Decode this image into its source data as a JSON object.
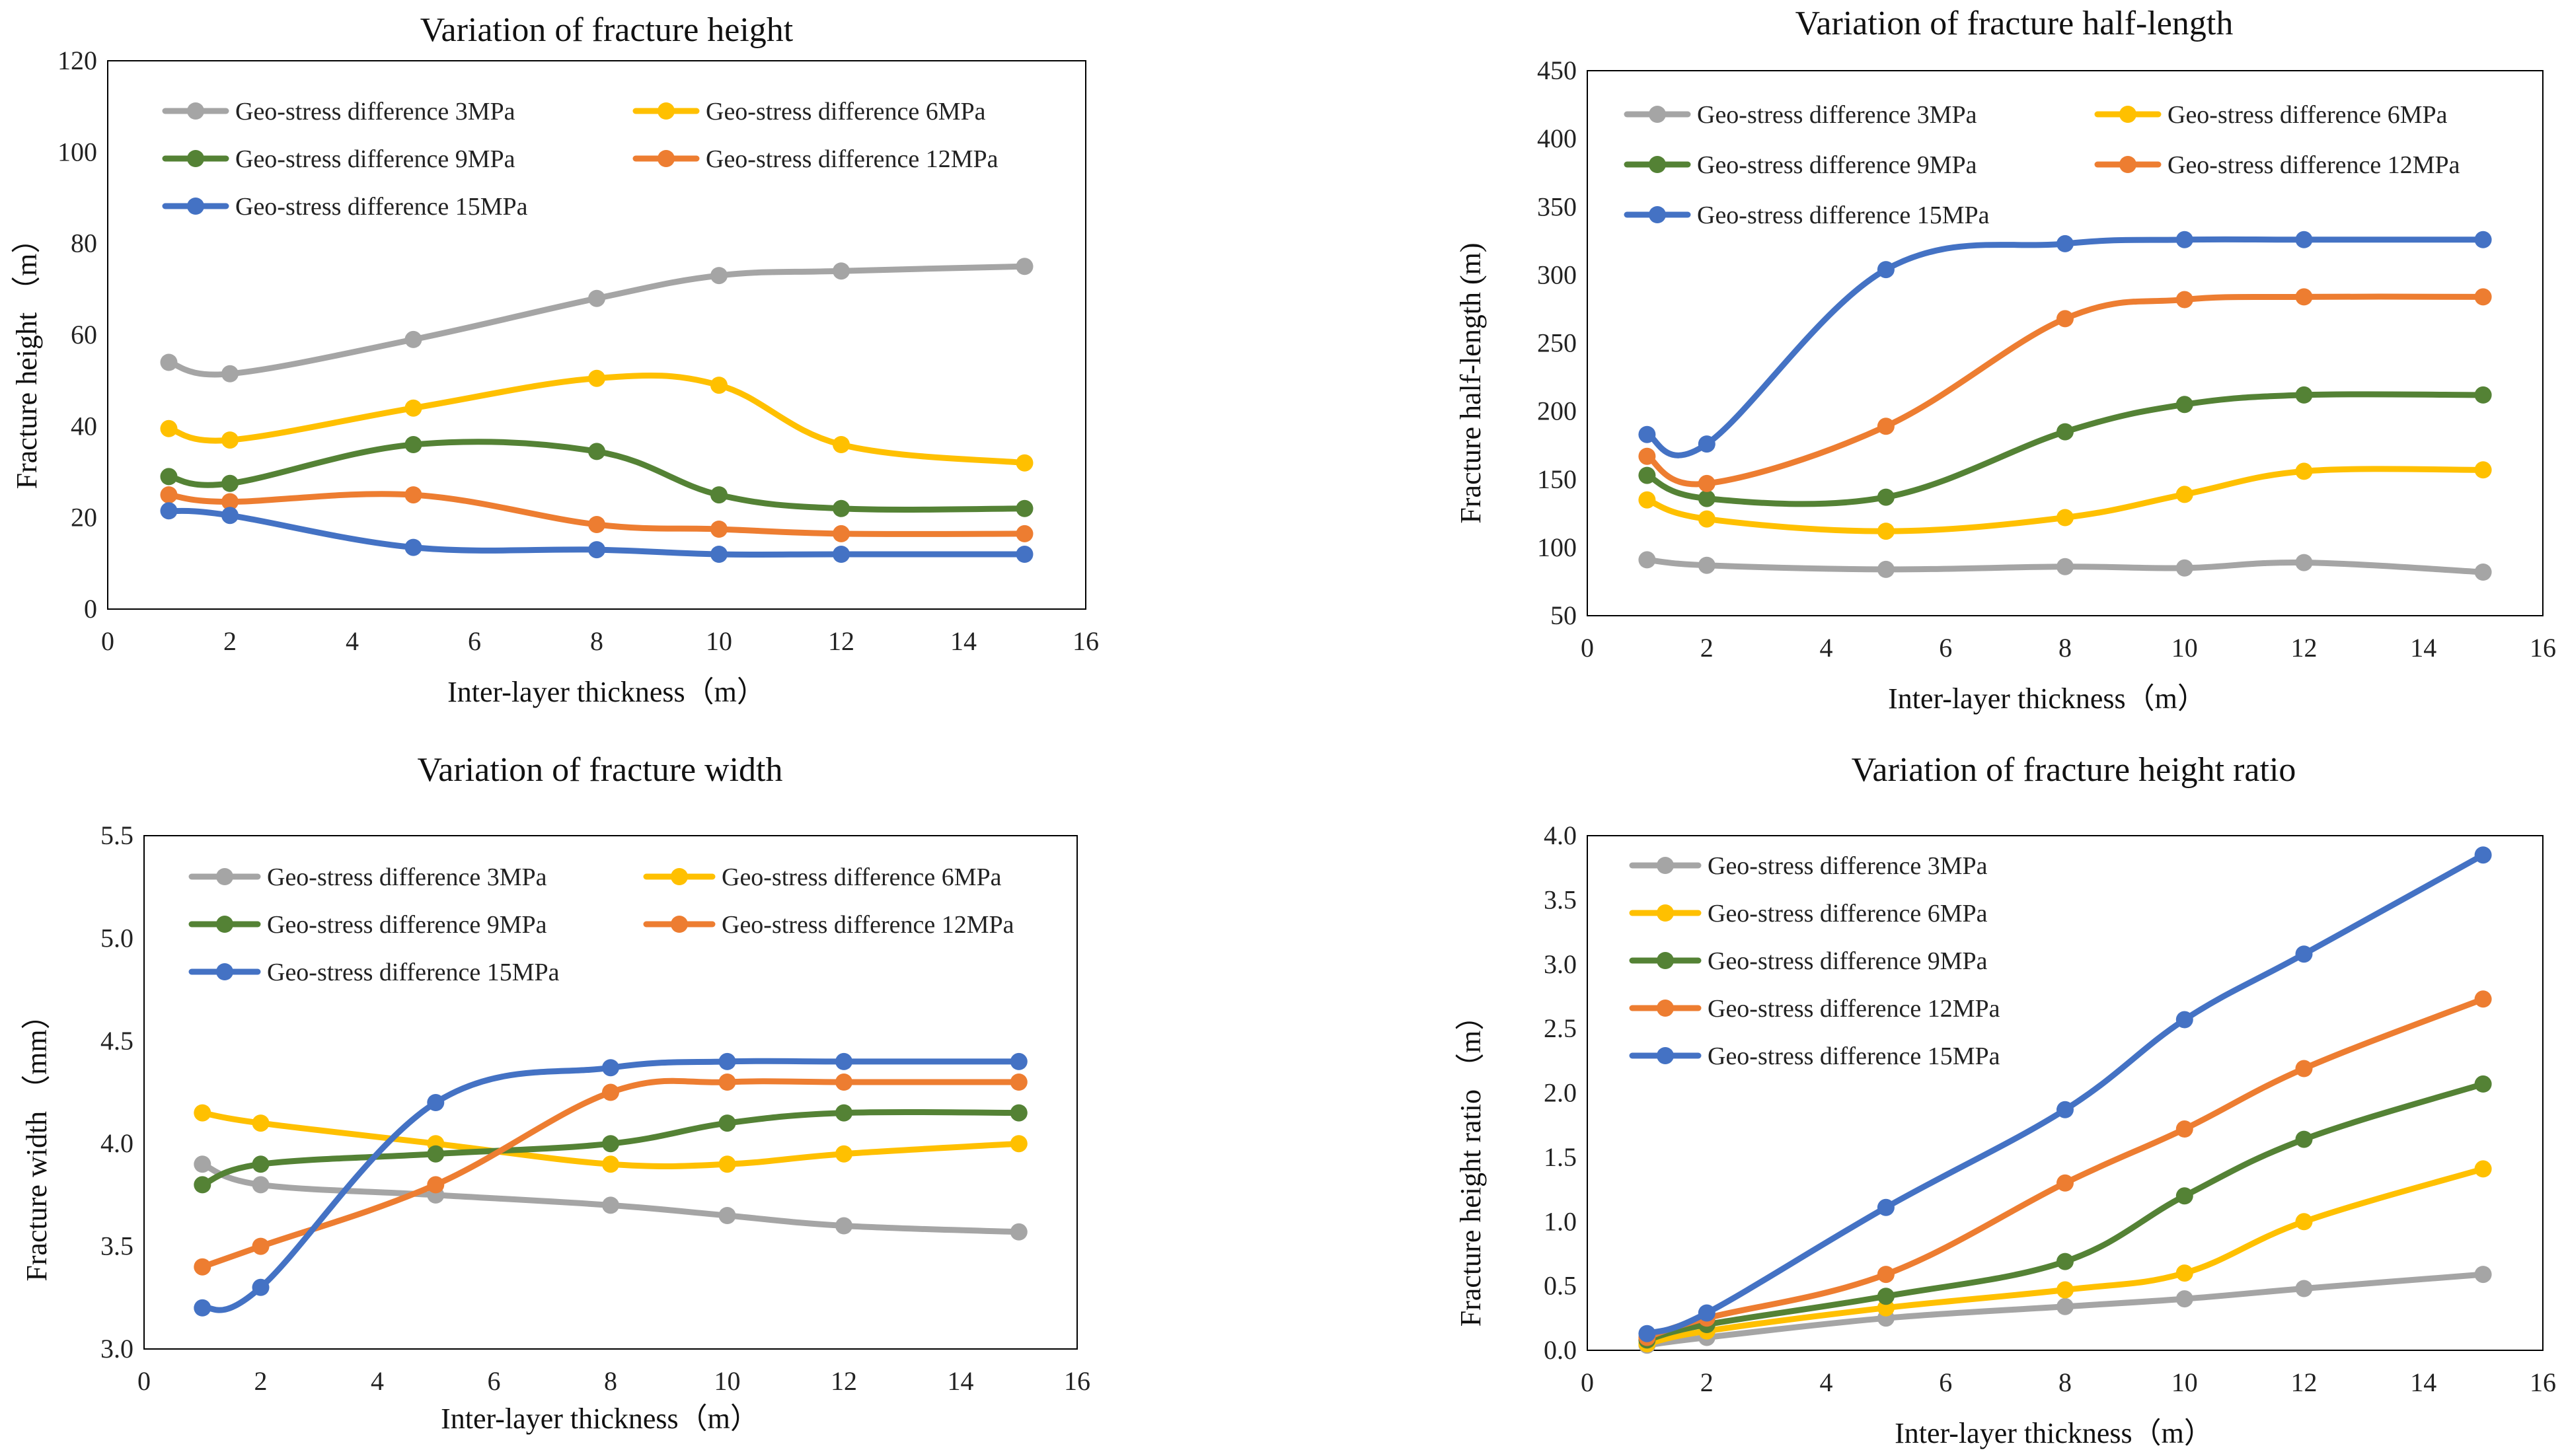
{
  "chart_data": [
    {
      "type": "line",
      "title": "Variation of fracture height",
      "xlabel": "Inter-layer thickness（m）",
      "ylabel": "Fracture height （m）",
      "x": [
        1,
        2,
        5,
        8,
        10,
        12,
        15
      ],
      "xlim": [
        0,
        16
      ],
      "xticks": [
        0,
        2,
        4,
        6,
        8,
        10,
        12,
        14,
        16
      ],
      "ylim": [
        0,
        120
      ],
      "yticks": [
        0,
        20,
        40,
        60,
        80,
        100,
        120
      ],
      "legend": "top-left, two columns",
      "series": [
        {
          "name": "Geo-stress difference 3MPa",
          "color": "#a5a5a5",
          "values": [
            54,
            51.5,
            59,
            68,
            73,
            74,
            75
          ]
        },
        {
          "name": "Geo-stress difference 6MPa",
          "color": "#ffc000",
          "values": [
            39.5,
            37,
            44,
            50.5,
            49,
            36,
            32
          ]
        },
        {
          "name": "Geo-stress difference 9MPa",
          "color": "#548235",
          "values": [
            29,
            27.5,
            36,
            34.5,
            25,
            22,
            22
          ]
        },
        {
          "name": "Geo-stress difference 12MPa",
          "color": "#ed7d31",
          "values": [
            25,
            23.5,
            25,
            18.5,
            17.5,
            16.5,
            16.5
          ]
        },
        {
          "name": "Geo-stress difference 15MPa",
          "color": "#4472c4",
          "values": [
            21.5,
            20.5,
            13.5,
            13,
            12,
            12,
            12
          ]
        }
      ]
    },
    {
      "type": "line",
      "title": "Variation of fracture half-length",
      "xlabel": "Inter-layer thickness（m）",
      "ylabel": "Fracture half-length (m)",
      "x": [
        1,
        2,
        5,
        8,
        10,
        12,
        15
      ],
      "xlim": [
        0,
        16
      ],
      "xticks": [
        0,
        2,
        4,
        6,
        8,
        10,
        12,
        14,
        16
      ],
      "ylim": [
        50,
        450
      ],
      "yticks": [
        50,
        100,
        150,
        200,
        250,
        300,
        350,
        400,
        450
      ],
      "legend": "top-left, two columns",
      "series": [
        {
          "name": "Geo-stress difference 3MPa",
          "color": "#a5a5a5",
          "values": [
            91,
            87,
            84,
            86,
            85,
            89,
            82
          ]
        },
        {
          "name": "Geo-stress difference 6MPa",
          "color": "#ffc000",
          "values": [
            135,
            121,
            112,
            122,
            139,
            156,
            157
          ]
        },
        {
          "name": "Geo-stress difference 9MPa",
          "color": "#548235",
          "values": [
            153,
            136,
            137,
            185,
            205,
            212,
            212
          ]
        },
        {
          "name": "Geo-stress difference 12MPa",
          "color": "#ed7d31",
          "values": [
            167,
            147,
            189,
            268,
            282,
            284,
            284
          ]
        },
        {
          "name": "Geo-stress difference 15MPa",
          "color": "#4472c4",
          "values": [
            183,
            176,
            304,
            323,
            326,
            326,
            326
          ]
        }
      ]
    },
    {
      "type": "line",
      "title": "Variation of fracture width",
      "xlabel": "Inter-layer thickness（m）",
      "ylabel": "Fracture width （mm）",
      "x": [
        1,
        2,
        5,
        8,
        10,
        12,
        15
      ],
      "xlim": [
        0,
        16
      ],
      "xticks": [
        0,
        2,
        4,
        6,
        8,
        10,
        12,
        14,
        16
      ],
      "ylim": [
        3.0,
        5.5
      ],
      "yticks": [
        3.0,
        3.5,
        4.0,
        4.5,
        5.0,
        5.5
      ],
      "legend": "top-left, two columns",
      "series": [
        {
          "name": "Geo-stress difference 3MPa",
          "color": "#a5a5a5",
          "values": [
            3.9,
            3.8,
            3.75,
            3.7,
            3.65,
            3.6,
            3.57
          ]
        },
        {
          "name": "Geo-stress difference 6MPa",
          "color": "#ffc000",
          "values": [
            4.15,
            4.1,
            4.0,
            3.9,
            3.9,
            3.95,
            4.0
          ]
        },
        {
          "name": "Geo-stress difference 9MPa",
          "color": "#548235",
          "values": [
            3.8,
            3.9,
            3.95,
            4.0,
            4.1,
            4.15,
            4.15
          ]
        },
        {
          "name": "Geo-stress difference 12MPa",
          "color": "#ed7d31",
          "values": [
            3.4,
            3.5,
            3.8,
            4.25,
            4.3,
            4.3,
            4.3
          ]
        },
        {
          "name": "Geo-stress difference 15MPa",
          "color": "#4472c4",
          "values": [
            3.2,
            3.3,
            4.2,
            4.37,
            4.4,
            4.4,
            4.4
          ]
        }
      ]
    },
    {
      "type": "line",
      "title": "Variation of fracture height ratio",
      "xlabel": "Inter-layer thickness（m）",
      "ylabel": "Fracture height ratio （m）",
      "x": [
        1,
        2,
        5,
        8,
        10,
        12,
        15
      ],
      "xlim": [
        0,
        16
      ],
      "xticks": [
        0,
        2,
        4,
        6,
        8,
        10,
        12,
        14,
        16
      ],
      "ylim": [
        0.0,
        4.0
      ],
      "yticks": [
        0.0,
        0.5,
        1.0,
        1.5,
        2.0,
        2.5,
        3.0,
        3.5,
        4.0
      ],
      "legend": "top-left, single column",
      "series": [
        {
          "name": "Geo-stress difference 3MPa",
          "color": "#a5a5a5",
          "values": [
            0.04,
            0.1,
            0.25,
            0.34,
            0.4,
            0.48,
            0.59
          ]
        },
        {
          "name": "Geo-stress difference 6MPa",
          "color": "#ffc000",
          "values": [
            0.05,
            0.15,
            0.33,
            0.47,
            0.6,
            1.0,
            1.41
          ]
        },
        {
          "name": "Geo-stress difference 9MPa",
          "color": "#548235",
          "values": [
            0.08,
            0.2,
            0.42,
            0.69,
            1.2,
            1.64,
            2.07
          ]
        },
        {
          "name": "Geo-stress difference 12MPa",
          "color": "#ed7d31",
          "values": [
            0.1,
            0.25,
            0.59,
            1.3,
            1.72,
            2.19,
            2.73
          ]
        },
        {
          "name": "Geo-stress difference 15MPa",
          "color": "#4472c4",
          "values": [
            0.13,
            0.29,
            1.11,
            1.87,
            2.57,
            3.08,
            3.85
          ]
        }
      ]
    }
  ]
}
